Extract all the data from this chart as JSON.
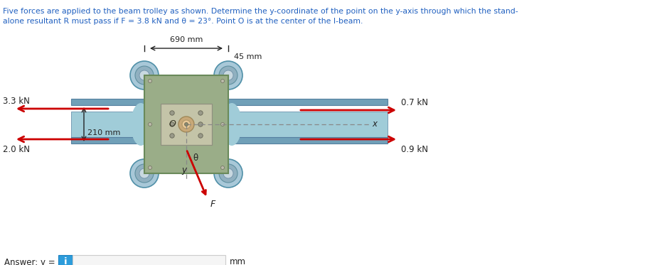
{
  "title_line1": "Five forces are applied to the beam trolley as shown. Determine the y-coordinate of the point on the y-axis through which the stand-",
  "title_line2": "alone resultant R must pass if F = 3.8 kN and θ = 23°. Point O is at the center of the I-beam.",
  "title_color": "#2060c0",
  "bg_color": "#ffffff",
  "answer_label": "Answer: y = ",
  "answer_unit": "mm",
  "answer_box_color": "#2d9cdb",
  "answer_box_text": "i",
  "force_33": "3.3 kN",
  "force_20": "2.0 kN",
  "force_07": "0.7 kN",
  "force_09": "0.9 kN",
  "force_F": "F",
  "dim_690": "690 mm",
  "dim_45": "45 mm",
  "dim_210": "210 mm",
  "label_theta": "θ",
  "label_y": "y",
  "label_x": "x",
  "trolley_color": "#9aad88",
  "trolley_edge": "#6a8a5a",
  "ibeam_color": "#a0ccd8",
  "ibeam_flange": "#70a0b8",
  "ibeam_edge": "#5580a0",
  "plate_color": "#c4c4a8",
  "plate_edge": "#909080",
  "arrow_color": "#cc0000",
  "wheel_outer": "#a8c8d8",
  "wheel_mid": "#90b0c0",
  "wheel_inner": "#c8d8e0",
  "dashed_color": "#888888",
  "bolt_fill": "#bbbbaa",
  "bolt_edge": "#777766",
  "ring_outer": "#c8a878",
  "ring_inner": "#e8c898",
  "dim_color": "#222222",
  "text_color": "#222222"
}
